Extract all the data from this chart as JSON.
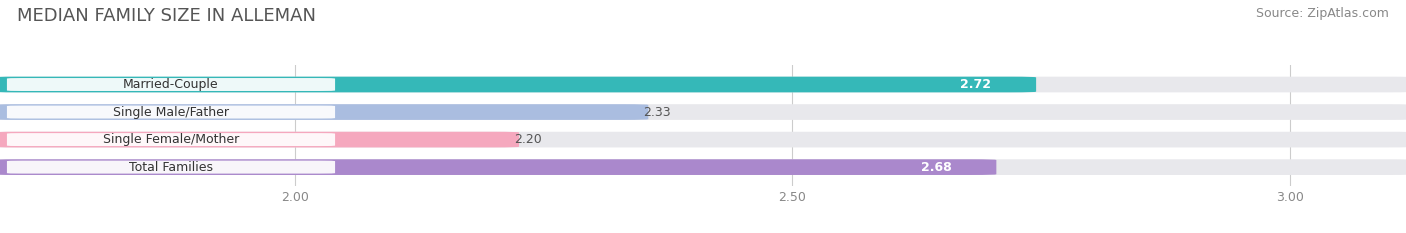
{
  "title": "MEDIAN FAMILY SIZE IN ALLEMAN",
  "source": "Source: ZipAtlas.com",
  "categories": [
    "Married-Couple",
    "Single Male/Father",
    "Single Female/Mother",
    "Total Families"
  ],
  "values": [
    2.72,
    2.33,
    2.2,
    2.68
  ],
  "bar_colors": [
    "#35b8b8",
    "#aabde0",
    "#f5a8be",
    "#aa88cc"
  ],
  "label_colors": [
    "white",
    "white",
    "white",
    "white"
  ],
  "value_label_colors": [
    "white",
    "#555555",
    "#555555",
    "white"
  ],
  "xlim_min": 1.72,
  "xlim_max": 3.1,
  "xticks": [
    2.0,
    2.5,
    3.0
  ],
  "bar_height": 0.52,
  "background_color": "#ffffff",
  "bar_bg_color": "#e8e8ec",
  "title_fontsize": 13,
  "source_fontsize": 9,
  "label_fontsize": 9,
  "value_fontsize": 9,
  "tick_fontsize": 9,
  "label_bg_color": "#ffffff"
}
